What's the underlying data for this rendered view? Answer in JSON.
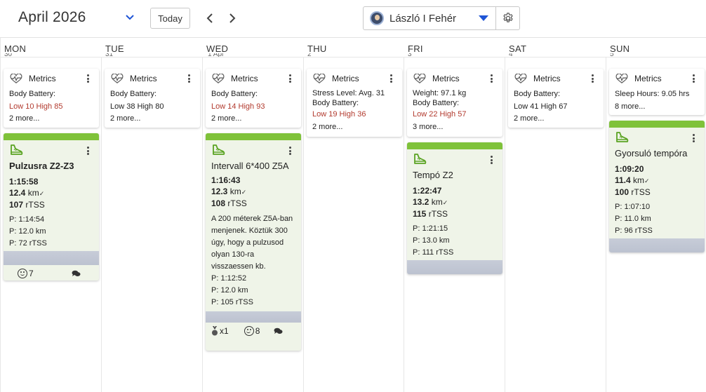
{
  "header": {
    "month_title": "April 2026",
    "today_label": "Today",
    "athlete_name": "László I Fehér",
    "accent_color": "#1f55d6"
  },
  "days": [
    {
      "label": "MON",
      "num": "30"
    },
    {
      "label": "TUE",
      "num": "31"
    },
    {
      "label": "WED",
      "num": "1 Apr"
    },
    {
      "label": "THU",
      "num": "2"
    },
    {
      "label": "FRI",
      "num": "3"
    },
    {
      "label": "SAT",
      "num": "4"
    },
    {
      "label": "SUN",
      "num": "5"
    }
  ],
  "metrics": {
    "title": "Metrics",
    "mon": {
      "line1": "Body Battery:",
      "line2": "Low 10 High 85",
      "more": "2 more..."
    },
    "tue": {
      "line1": "Body Battery:",
      "line2": "Low 38 High 80",
      "more": "2 more..."
    },
    "wed": {
      "line1": "Body Battery:",
      "line2": "Low 14 High 93",
      "more": "2 more..."
    },
    "thu": {
      "line0": "Stress Level:  Avg. 31",
      "line1": "Body Battery:",
      "line2": "Low 19 High 36",
      "more": "2 more..."
    },
    "fri": {
      "line0": "Weight:  97.1 kg",
      "line1": "Body Battery:",
      "line2": "Low 22 High 57",
      "more": "3 more..."
    },
    "sat": {
      "line1": "Body Battery:",
      "line2": "Low 41 High 67",
      "more": "2 more..."
    },
    "sun": {
      "line0": "Sleep Hours:  9.05 hrs",
      "more": "8 more..."
    }
  },
  "workouts": {
    "mon": {
      "title": "Pulzusra Z2-Z3",
      "duration": "1:15:58",
      "distance": "12.4",
      "distance_unit": "km",
      "tss": "107",
      "tss_unit": "rTSS",
      "plan_duration": "P: 1:14:54",
      "plan_distance": "P: 12.0 km",
      "plan_tss": "P: 72 rTSS",
      "feel_count": "7"
    },
    "wed": {
      "title": "Intervall 6*400 Z5A",
      "duration": "1:16:43",
      "distance": "12.3",
      "distance_unit": "km",
      "tss": "108",
      "tss_unit": "rTSS",
      "description": "A 200 méterek Z5A-ban menjenek. Köztük 300 úgy, hogy a pulzusod olyan 130-ra visszaessen kb.",
      "plan_duration": "P: 1:12:52",
      "plan_distance": "P: 12.0 km",
      "plan_tss": "P: 105 rTSS",
      "medal_count": "x1",
      "feel_count": "8"
    },
    "fri": {
      "title": "Tempó Z2",
      "duration": "1:22:47",
      "distance": "13.2",
      "distance_unit": "km",
      "tss": "115",
      "tss_unit": "rTSS",
      "plan_duration": "P: 1:21:15",
      "plan_distance": "P: 13.0 km",
      "plan_tss": "P: 111 rTSS"
    },
    "sun": {
      "title": "Gyorsuló tempóra",
      "duration": "1:09:20",
      "distance": "11.4",
      "distance_unit": "km",
      "tss": "100",
      "tss_unit": "rTSS",
      "plan_duration": "P: 1:07:10",
      "plan_distance": "P: 11.0 km",
      "plan_tss": "P: 96 rTSS"
    }
  },
  "icons": {
    "metrics": "heart-pulse-icon",
    "workout": "running-shoe-icon",
    "comment": "comment-icon",
    "feel": "smiley-icon",
    "medal": "medal-icon"
  },
  "colors": {
    "workout_bar": "#7fc23a",
    "workout_bg": "#eff4e8",
    "low_value_red": "#b23a2e"
  }
}
